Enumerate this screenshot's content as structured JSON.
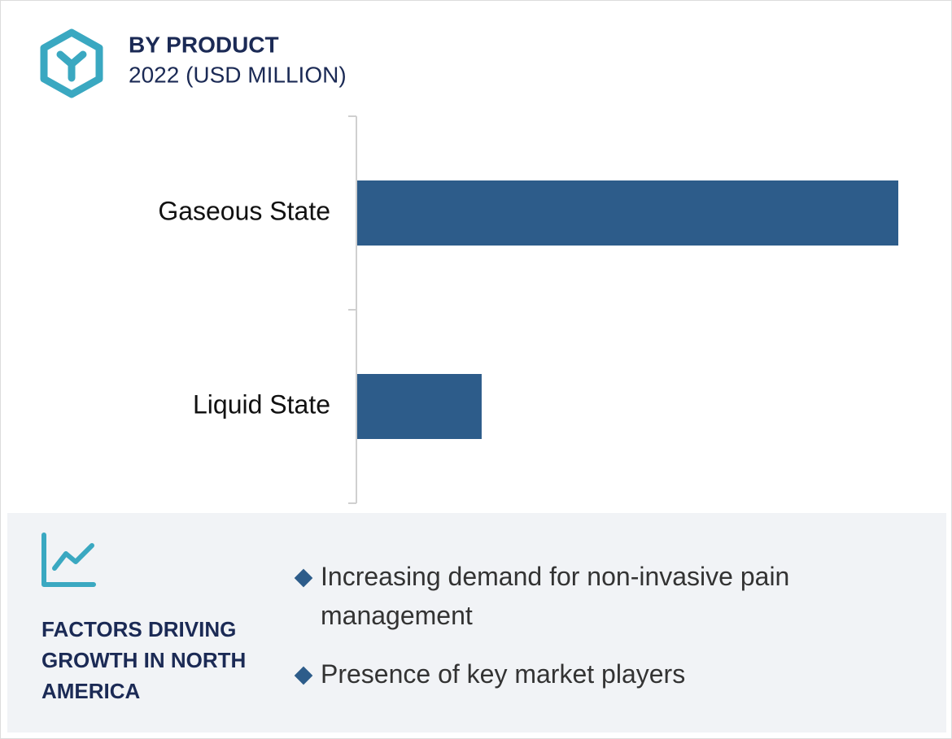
{
  "chart_data": {
    "type": "bar",
    "orientation": "horizontal",
    "title": "BY PRODUCT",
    "subtitle": "2022 (USD MILLION)",
    "categories": [
      "Gaseous State",
      "Liquid State"
    ],
    "values": [
      100,
      23
    ],
    "color": "#2d5c8a"
  },
  "factors": {
    "title": "FACTORS DRIVING GROWTH IN NORTH AMERICA",
    "items": [
      "Increasing demand for non-invasive pain management",
      "Presence of key market players"
    ]
  }
}
